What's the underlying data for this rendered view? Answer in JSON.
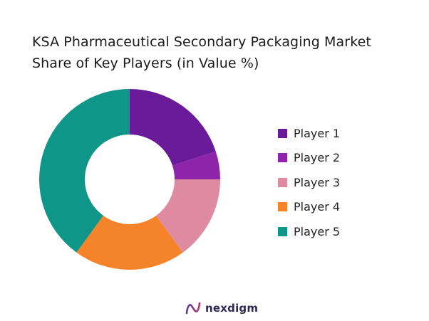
{
  "title": {
    "line1": "KSA Pharmaceutical Secondary Packaging Market",
    "line2": "Share of Key Players (in Value %)"
  },
  "chart_data": {
    "type": "pie",
    "subtype": "donut",
    "categories": [
      "Player 1",
      "Player 2",
      "Player 3",
      "Player 4",
      "Player 5"
    ],
    "values": [
      20,
      5,
      15,
      20,
      40
    ],
    "colors": [
      "#6a1b9a",
      "#8e24aa",
      "#de8aa0",
      "#f5832a",
      "#0f9688"
    ],
    "start_angle_deg": 0,
    "direction": "clockwise",
    "legend_position": "right"
  },
  "brand": {
    "name": "nexdigm",
    "icon": "nexdigm-logo-icon",
    "color": "#2e2a56"
  }
}
